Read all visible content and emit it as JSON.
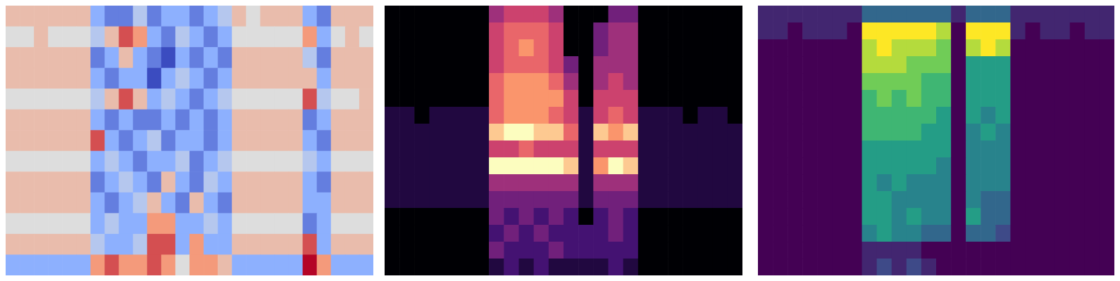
{
  "chart_data": [
    {
      "type": "heatmap",
      "color": "coolwarm",
      "tick_labels": false,
      "cells": [
        [
          6,
          6,
          6,
          6,
          6,
          6,
          3,
          2,
          2,
          4,
          2,
          3,
          3,
          2,
          3,
          4,
          6,
          5,
          6,
          6,
          6,
          3,
          2,
          6,
          6,
          6
        ],
        [
          5,
          5,
          6,
          5,
          5,
          5,
          4,
          6,
          8,
          7,
          3,
          2,
          4,
          3,
          2,
          3,
          5,
          5,
          5,
          5,
          5,
          7,
          3,
          5,
          6,
          5
        ],
        [
          6,
          6,
          6,
          6,
          6,
          6,
          2,
          3,
          6,
          3,
          2,
          1,
          3,
          2,
          3,
          2,
          6,
          6,
          6,
          6,
          6,
          4,
          2,
          6,
          6,
          6
        ],
        [
          6,
          6,
          6,
          6,
          6,
          6,
          3,
          2,
          3,
          3,
          1,
          3,
          4,
          3,
          2,
          3,
          6,
          6,
          6,
          6,
          6,
          6,
          3,
          6,
          6,
          6
        ],
        [
          5,
          5,
          5,
          5,
          5,
          5,
          4,
          6,
          8,
          6,
          3,
          4,
          3,
          2,
          3,
          4,
          5,
          5,
          5,
          5,
          5,
          8,
          4,
          5,
          5,
          6
        ],
        [
          6,
          6,
          6,
          6,
          6,
          6,
          3,
          2,
          3,
          2,
          2,
          3,
          2,
          3,
          2,
          3,
          6,
          6,
          6,
          6,
          6,
          2,
          3,
          6,
          6,
          6
        ],
        [
          6,
          6,
          6,
          6,
          6,
          6,
          8,
          3,
          2,
          3,
          4,
          2,
          3,
          3,
          2,
          3,
          6,
          6,
          6,
          6,
          6,
          3,
          2,
          6,
          6,
          6
        ],
        [
          5,
          5,
          5,
          5,
          5,
          5,
          3,
          4,
          3,
          2,
          3,
          3,
          4,
          2,
          3,
          4,
          5,
          5,
          5,
          5,
          5,
          4,
          3,
          5,
          5,
          5
        ],
        [
          6,
          6,
          6,
          6,
          6,
          6,
          2,
          3,
          4,
          3,
          2,
          6,
          3,
          2,
          4,
          3,
          6,
          6,
          6,
          6,
          6,
          3,
          2,
          6,
          6,
          6
        ],
        [
          6,
          6,
          6,
          6,
          6,
          6,
          3,
          2,
          3,
          4,
          6,
          3,
          2,
          6,
          3,
          2,
          6,
          6,
          6,
          6,
          6,
          3,
          3,
          6,
          6,
          6
        ],
        [
          5,
          5,
          5,
          5,
          5,
          5,
          3,
          4,
          3,
          3,
          7,
          7,
          3,
          3,
          4,
          3,
          5,
          5,
          5,
          5,
          5,
          2,
          3,
          5,
          5,
          5
        ],
        [
          6,
          6,
          6,
          6,
          6,
          6,
          4,
          3,
          3,
          4,
          8,
          8,
          3,
          7,
          3,
          3,
          6,
          6,
          6,
          6,
          6,
          8,
          3,
          6,
          6,
          6
        ],
        [
          3,
          3,
          3,
          3,
          3,
          3,
          7,
          8,
          7,
          7,
          8,
          7,
          5,
          7,
          7,
          6,
          3,
          3,
          3,
          3,
          3,
          9,
          7,
          3,
          3,
          3
        ]
      ]
    },
    {
      "type": "heatmap",
      "color": "magma",
      "tick_labels": false,
      "cells": [
        [
          0,
          0,
          0,
          0,
          0,
          0,
          0,
          4,
          5,
          5,
          5,
          4,
          0,
          0,
          0,
          3,
          3,
          0,
          0,
          0,
          0,
          0,
          0,
          0
        ],
        [
          0,
          0,
          0,
          0,
          0,
          0,
          0,
          5,
          6,
          6,
          6,
          5,
          0,
          0,
          3,
          4,
          4,
          0,
          0,
          0,
          0,
          0,
          0,
          0
        ],
        [
          0,
          0,
          0,
          0,
          0,
          0,
          0,
          5,
          6,
          7,
          6,
          5,
          0,
          0,
          3,
          4,
          4,
          0,
          0,
          0,
          0,
          0,
          0,
          0
        ],
        [
          0,
          0,
          0,
          0,
          0,
          0,
          0,
          5,
          6,
          6,
          6,
          5,
          3,
          0,
          4,
          4,
          4,
          0,
          0,
          0,
          0,
          0,
          0,
          0
        ],
        [
          0,
          0,
          0,
          0,
          0,
          0,
          0,
          6,
          7,
          7,
          7,
          6,
          4,
          0,
          4,
          5,
          4,
          0,
          0,
          0,
          0,
          0,
          0,
          0
        ],
        [
          0,
          0,
          0,
          0,
          0,
          0,
          0,
          6,
          7,
          7,
          7,
          7,
          5,
          0,
          5,
          5,
          5,
          0,
          0,
          0,
          0,
          0,
          0,
          0
        ],
        [
          1,
          1,
          0,
          1,
          1,
          1,
          1,
          6,
          7,
          7,
          7,
          6,
          5,
          1,
          5,
          6,
          5,
          1,
          1,
          1,
          0,
          1,
          1,
          0
        ],
        [
          1,
          1,
          1,
          1,
          1,
          1,
          1,
          8,
          9,
          9,
          8,
          8,
          6,
          1,
          8,
          7,
          8,
          1,
          1,
          1,
          1,
          1,
          1,
          1
        ],
        [
          1,
          1,
          1,
          1,
          1,
          1,
          1,
          5,
          5,
          6,
          5,
          5,
          5,
          1,
          5,
          5,
          5,
          1,
          1,
          1,
          1,
          1,
          1,
          1
        ],
        [
          1,
          1,
          1,
          1,
          1,
          1,
          1,
          9,
          9,
          9,
          9,
          9,
          8,
          1,
          7,
          9,
          8,
          1,
          1,
          1,
          1,
          1,
          1,
          1
        ],
        [
          1,
          1,
          1,
          1,
          1,
          1,
          1,
          4,
          4,
          4,
          4,
          4,
          4,
          1,
          4,
          4,
          4,
          1,
          1,
          1,
          1,
          1,
          1,
          1
        ],
        [
          1,
          1,
          1,
          1,
          1,
          1,
          1,
          3,
          3,
          3,
          3,
          3,
          3,
          1,
          3,
          3,
          3,
          1,
          1,
          1,
          1,
          1,
          1,
          1
        ],
        [
          0,
          0,
          0,
          0,
          0,
          0,
          0,
          3,
          2,
          3,
          2,
          3,
          2,
          0,
          2,
          3,
          2,
          0,
          0,
          0,
          0,
          0,
          0,
          0
        ],
        [
          0,
          0,
          0,
          0,
          0,
          0,
          0,
          2,
          3,
          2,
          3,
          2,
          2,
          2,
          2,
          3,
          2,
          0,
          0,
          0,
          0,
          0,
          0,
          0
        ],
        [
          0,
          0,
          0,
          0,
          0,
          0,
          0,
          3,
          2,
          2,
          2,
          3,
          2,
          2,
          2,
          2,
          2,
          0,
          0,
          0,
          0,
          0,
          0,
          0
        ],
        [
          0,
          0,
          0,
          0,
          0,
          0,
          0,
          1,
          2,
          1,
          2,
          1,
          1,
          1,
          1,
          2,
          1,
          0,
          0,
          0,
          0,
          0,
          0,
          0
        ]
      ]
    },
    {
      "type": "heatmap",
      "color": "viridis",
      "tick_labels": false,
      "cells": [
        [
          1,
          1,
          1,
          1,
          1,
          1,
          1,
          3,
          3,
          3,
          3,
          3,
          3,
          1,
          3,
          3,
          3,
          1,
          1,
          1,
          1,
          1,
          1,
          1
        ],
        [
          1,
          1,
          0,
          1,
          1,
          1,
          0,
          9,
          9,
          9,
          9,
          9,
          8,
          0,
          9,
          9,
          9,
          1,
          0,
          1,
          1,
          0,
          1,
          1
        ],
        [
          0,
          0,
          0,
          0,
          0,
          0,
          0,
          8,
          9,
          8,
          8,
          8,
          7,
          0,
          8,
          9,
          8,
          0,
          0,
          0,
          0,
          0,
          0,
          0
        ],
        [
          0,
          0,
          0,
          0,
          0,
          0,
          0,
          8,
          8,
          8,
          7,
          7,
          7,
          0,
          5,
          5,
          5,
          0,
          0,
          0,
          0,
          0,
          0,
          0
        ],
        [
          0,
          0,
          0,
          0,
          0,
          0,
          0,
          7,
          7,
          7,
          7,
          6,
          6,
          0,
          5,
          5,
          5,
          0,
          0,
          0,
          0,
          0,
          0,
          0
        ],
        [
          0,
          0,
          0,
          0,
          0,
          0,
          0,
          6,
          7,
          6,
          7,
          6,
          6,
          0,
          5,
          5,
          5,
          0,
          0,
          0,
          0,
          0,
          0,
          0
        ],
        [
          0,
          0,
          0,
          0,
          0,
          0,
          0,
          6,
          6,
          6,
          6,
          6,
          5,
          0,
          5,
          4,
          5,
          0,
          0,
          0,
          0,
          0,
          0,
          0
        ],
        [
          0,
          0,
          0,
          0,
          0,
          0,
          0,
          6,
          6,
          6,
          6,
          5,
          5,
          0,
          4,
          5,
          4,
          0,
          0,
          0,
          0,
          0,
          0,
          0
        ],
        [
          0,
          0,
          0,
          0,
          0,
          0,
          0,
          5,
          5,
          5,
          5,
          5,
          5,
          0,
          4,
          4,
          4,
          0,
          0,
          0,
          0,
          0,
          0,
          0
        ],
        [
          0,
          0,
          0,
          0,
          0,
          0,
          0,
          5,
          5,
          5,
          5,
          5,
          4,
          0,
          4,
          4,
          4,
          0,
          0,
          0,
          0,
          0,
          0,
          0
        ],
        [
          0,
          0,
          0,
          0,
          0,
          0,
          0,
          5,
          4,
          5,
          4,
          4,
          4,
          0,
          4,
          4,
          4,
          0,
          0,
          0,
          0,
          0,
          0,
          0
        ],
        [
          0,
          0,
          0,
          0,
          0,
          0,
          0,
          5,
          5,
          4,
          4,
          4,
          4,
          0,
          4,
          3,
          3,
          0,
          0,
          0,
          0,
          0,
          0,
          0
        ],
        [
          0,
          0,
          0,
          0,
          0,
          0,
          0,
          5,
          5,
          4,
          5,
          4,
          4,
          0,
          5,
          3,
          3,
          0,
          0,
          0,
          0,
          0,
          0,
          0
        ],
        [
          0,
          0,
          0,
          0,
          0,
          0,
          0,
          4,
          5,
          4,
          4,
          3,
          3,
          0,
          3,
          3,
          2,
          0,
          0,
          0,
          0,
          0,
          0,
          0
        ],
        [
          0,
          0,
          0,
          0,
          0,
          0,
          0,
          1,
          1,
          1,
          1,
          0,
          0,
          0,
          0,
          0,
          0,
          0,
          0,
          0,
          0,
          0,
          0,
          0
        ],
        [
          0,
          0,
          0,
          0,
          0,
          0,
          0,
          1,
          2,
          1,
          2,
          1,
          0,
          0,
          0,
          0,
          0,
          0,
          0,
          0,
          0,
          0,
          0,
          0
        ]
      ]
    }
  ]
}
